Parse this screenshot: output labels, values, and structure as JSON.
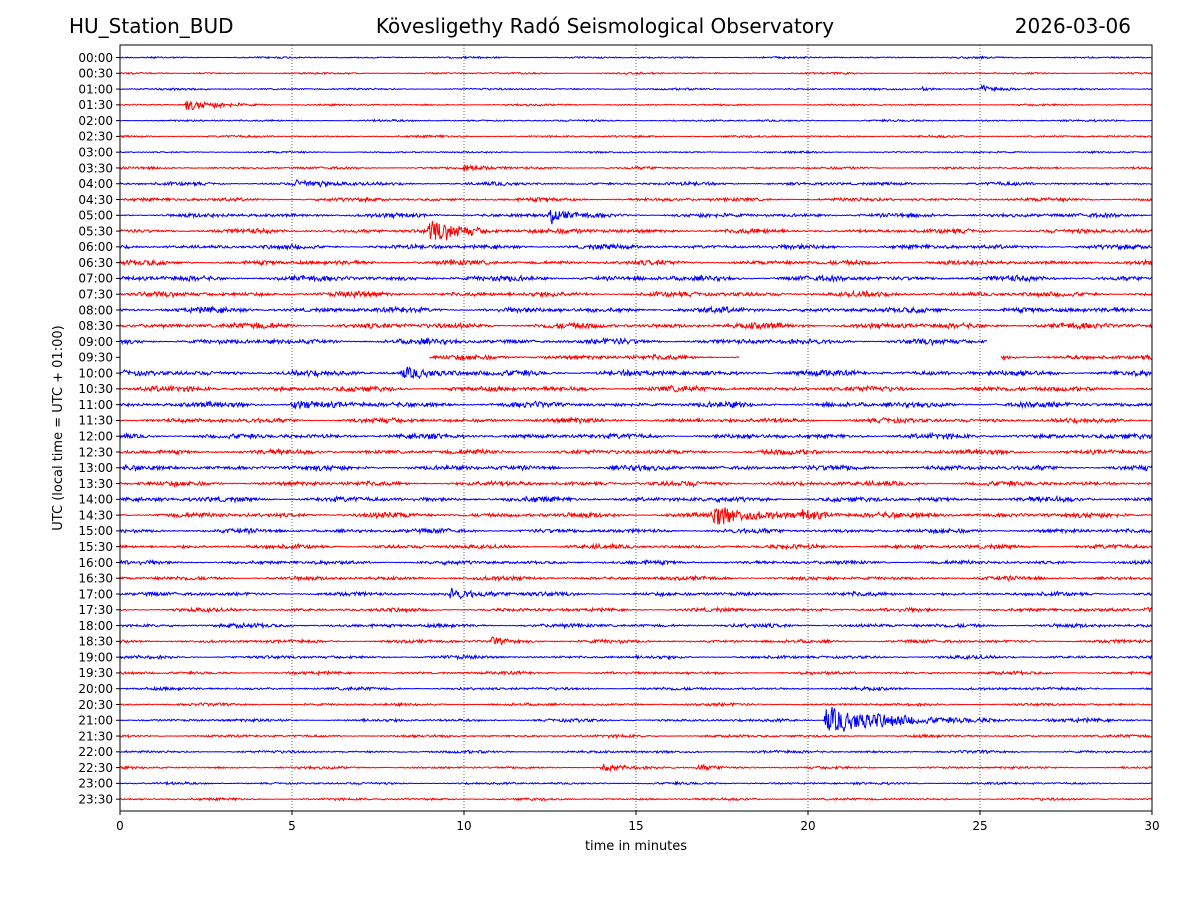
{
  "chart_data": {
    "type": "line",
    "station": "HU_Station_BUD",
    "title": "Kövesligethy Radó Seismological Observatory",
    "date": "2026-03-06",
    "xlabel": "time in minutes",
    "ylabel": "UTC (local time = UTC + 01:00)",
    "xlim": [
      0,
      30
    ],
    "xticks": [
      "0",
      "5",
      "10",
      "15",
      "20",
      "25",
      "30"
    ],
    "grid_x": true,
    "colors": [
      "#0000ff",
      "#ff0000"
    ],
    "rows": [
      {
        "label": "00:00",
        "amp": 1.2
      },
      {
        "label": "00:30",
        "amp": 1.2
      },
      {
        "label": "01:00",
        "amp": 1.3,
        "events": [
          {
            "t": 25.0,
            "a": 4,
            "d": 0.4
          },
          {
            "t": 23.3,
            "a": 3,
            "d": 0.3
          }
        ]
      },
      {
        "label": "01:30",
        "amp": 1.2,
        "events": [
          {
            "t": 1.9,
            "a": 6,
            "d": 0.9
          }
        ]
      },
      {
        "label": "02:00",
        "amp": 1.3
      },
      {
        "label": "02:30",
        "amp": 1.4
      },
      {
        "label": "03:00",
        "amp": 1.2
      },
      {
        "label": "03:30",
        "amp": 1.6,
        "events": [
          {
            "t": 10.0,
            "a": 4,
            "d": 0.6
          }
        ]
      },
      {
        "label": "04:00",
        "amp": 2.2,
        "events": [
          {
            "t": 5.1,
            "a": 4,
            "d": 0.8
          }
        ]
      },
      {
        "label": "04:30",
        "amp": 2.4
      },
      {
        "label": "05:00",
        "amp": 2.8,
        "events": [
          {
            "t": 12.5,
            "a": 9,
            "d": 0.4
          }
        ]
      },
      {
        "label": "05:30",
        "amp": 3.0,
        "events": [
          {
            "t": 9.0,
            "a": 11,
            "d": 1.0
          }
        ]
      },
      {
        "label": "06:00",
        "amp": 3.0
      },
      {
        "label": "06:30",
        "amp": 3.2
      },
      {
        "label": "07:00",
        "amp": 3.6
      },
      {
        "label": "07:30",
        "amp": 3.4
      },
      {
        "label": "08:00",
        "amp": 3.6
      },
      {
        "label": "08:30",
        "amp": 3.8
      },
      {
        "label": "09:00",
        "amp": 3.6,
        "end": 25.2
      },
      {
        "label": "09:30",
        "amp": 3.4,
        "start": 9.0,
        "gap": [
          18.0,
          25.6
        ]
      },
      {
        "label": "10:00",
        "amp": 3.8,
        "events": [
          {
            "t": 8.2,
            "a": 6,
            "d": 0.8
          }
        ]
      },
      {
        "label": "10:30",
        "amp": 3.6
      },
      {
        "label": "11:00",
        "amp": 3.6,
        "events": [
          {
            "t": 5.0,
            "a": 5,
            "d": 0.6
          }
        ]
      },
      {
        "label": "11:30",
        "amp": 3.2
      },
      {
        "label": "12:00",
        "amp": 3.4
      },
      {
        "label": "12:30",
        "amp": 3.2
      },
      {
        "label": "13:00",
        "amp": 3.4
      },
      {
        "label": "13:30",
        "amp": 3.2
      },
      {
        "label": "14:00",
        "amp": 3.4
      },
      {
        "label": "14:30",
        "amp": 3.4,
        "events": [
          {
            "t": 17.2,
            "a": 13,
            "d": 0.9
          },
          {
            "t": 19.8,
            "a": 5,
            "d": 0.8
          }
        ]
      },
      {
        "label": "15:00",
        "amp": 3.0
      },
      {
        "label": "15:30",
        "amp": 2.8
      },
      {
        "label": "16:00",
        "amp": 2.6
      },
      {
        "label": "16:30",
        "amp": 2.6
      },
      {
        "label": "17:00",
        "amp": 2.6,
        "events": [
          {
            "t": 9.6,
            "a": 6,
            "d": 0.8
          }
        ]
      },
      {
        "label": "17:30",
        "amp": 2.4,
        "events": [
          {
            "t": 29.8,
            "a": 5,
            "d": 0.4
          }
        ]
      },
      {
        "label": "18:00",
        "amp": 2.6
      },
      {
        "label": "18:30",
        "amp": 2.2,
        "events": [
          {
            "t": 10.8,
            "a": 4,
            "d": 0.5
          }
        ]
      },
      {
        "label": "19:00",
        "amp": 2.2
      },
      {
        "label": "19:30",
        "amp": 2.0
      },
      {
        "label": "20:00",
        "amp": 2.0
      },
      {
        "label": "20:30",
        "amp": 1.8
      },
      {
        "label": "21:00",
        "amp": 2.0,
        "events": [
          {
            "t": 20.5,
            "a": 16,
            "d": 1.8
          }
        ]
      },
      {
        "label": "21:30",
        "amp": 1.8
      },
      {
        "label": "22:00",
        "amp": 1.8
      },
      {
        "label": "22:30",
        "amp": 1.6,
        "events": [
          {
            "t": 14.0,
            "a": 4,
            "d": 0.5
          },
          {
            "t": 16.8,
            "a": 3,
            "d": 0.5
          }
        ]
      },
      {
        "label": "23:00",
        "amp": 1.6
      },
      {
        "label": "23:30",
        "amp": 1.6
      }
    ]
  }
}
